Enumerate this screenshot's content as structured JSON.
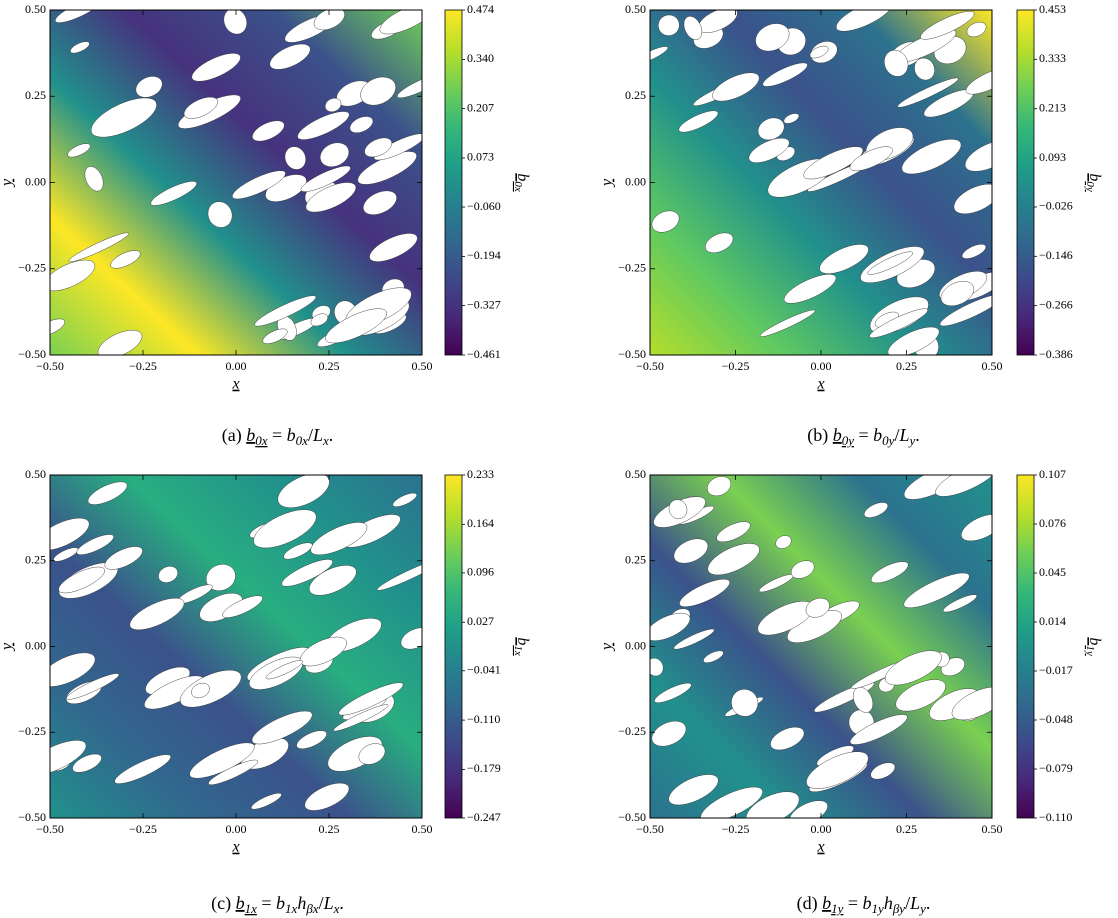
{
  "chart_data": [
    {
      "type": "heatmap",
      "xlabel": "x",
      "ylabel": "y",
      "xlim": [
        -0.5,
        0.5
      ],
      "ylim": [
        -0.5,
        0.5
      ],
      "xticks": [
        {
          "value": -0.5,
          "label": "−0.50"
        },
        {
          "value": -0.25,
          "label": "−0.25"
        },
        {
          "value": 0,
          "label": "0.00"
        },
        {
          "value": 0.25,
          "label": "0.25"
        },
        {
          "value": 0.5,
          "label": "0.50"
        }
      ],
      "yticks": [
        {
          "value": -0.5,
          "label": "−0.50"
        },
        {
          "value": -0.25,
          "label": "−0.25"
        },
        {
          "value": 0,
          "label": "0.00"
        },
        {
          "value": 0.25,
          "label": "0.25"
        },
        {
          "value": 0.5,
          "label": "0.50"
        }
      ],
      "colorbar": {
        "label": {
          "base": "b",
          "sub": "0x"
        },
        "lim": [
          -0.461,
          0.474
        ],
        "ticks": [
          {
            "value": -0.461,
            "label": "−0.461"
          },
          {
            "value": -0.327,
            "label": "−0.327"
          },
          {
            "value": -0.194,
            "label": "−0.194"
          },
          {
            "value": -0.06,
            "label": "−0.060"
          },
          0.073,
          0.207,
          {
            "value": 0.34,
            "label": "0.340"
          },
          0.474
        ]
      },
      "caption": [
        {
          "text": "(a) "
        },
        {
          "text": "b",
          "sub": "0x",
          "underline": true
        },
        {
          "text": " = "
        },
        {
          "text": "b",
          "sub": "0x"
        },
        {
          "text": "/"
        },
        {
          "text": "L",
          "sub": "x"
        },
        {
          "text": "."
        }
      ]
    },
    {
      "type": "heatmap",
      "xlabel": "x",
      "ylabel": "y",
      "xlim": [
        -0.5,
        0.5
      ],
      "ylim": [
        -0.5,
        0.5
      ],
      "xticks": [
        {
          "value": -0.5,
          "label": "−0.50"
        },
        {
          "value": -0.25,
          "label": "−0.25"
        },
        {
          "value": 0,
          "label": "0.00"
        },
        {
          "value": 0.25,
          "label": "0.25"
        },
        {
          "value": 0.5,
          "label": "0.50"
        }
      ],
      "yticks": [
        {
          "value": -0.5,
          "label": "−0.50"
        },
        {
          "value": -0.25,
          "label": "−0.25"
        },
        {
          "value": 0,
          "label": "0.00"
        },
        {
          "value": 0.25,
          "label": "0.25"
        },
        {
          "value": 0.5,
          "label": "0.50"
        }
      ],
      "colorbar": {
        "label": {
          "base": "b",
          "sub": "0y"
        },
        "lim": [
          -0.386,
          0.453
        ],
        "ticks": [
          {
            "value": -0.386,
            "label": "−0.386"
          },
          {
            "value": -0.266,
            "label": "−0.266"
          },
          {
            "value": -0.146,
            "label": "−0.146"
          },
          {
            "value": -0.026,
            "label": "−0.026"
          },
          0.093,
          0.213,
          0.333,
          0.453
        ]
      },
      "caption": [
        {
          "text": "(b) "
        },
        {
          "text": "b",
          "sub": "0y",
          "underline": true
        },
        {
          "text": " = "
        },
        {
          "text": "b",
          "sub": "0y"
        },
        {
          "text": "/"
        },
        {
          "text": "L",
          "sub": "y"
        },
        {
          "text": "."
        }
      ]
    },
    {
      "type": "heatmap",
      "xlabel": "x",
      "ylabel": "y",
      "xlim": [
        -0.5,
        0.5
      ],
      "ylim": [
        -0.5,
        0.5
      ],
      "xticks": [
        {
          "value": -0.5,
          "label": "−0.50"
        },
        {
          "value": -0.25,
          "label": "−0.25"
        },
        {
          "value": 0,
          "label": "0.00"
        },
        {
          "value": 0.25,
          "label": "0.25"
        },
        {
          "value": 0.5,
          "label": "0.50"
        }
      ],
      "yticks": [
        {
          "value": -0.5,
          "label": "−0.50"
        },
        {
          "value": -0.25,
          "label": "−0.25"
        },
        {
          "value": 0,
          "label": "0.00"
        },
        {
          "value": 0.25,
          "label": "0.25"
        },
        {
          "value": 0.5,
          "label": "0.50"
        }
      ],
      "colorbar": {
        "label": {
          "base": "b",
          "sub": "1x"
        },
        "lim": [
          -0.247,
          0.233
        ],
        "ticks": [
          {
            "value": -0.247,
            "label": "−0.247"
          },
          {
            "value": -0.179,
            "label": "−0.179"
          },
          {
            "value": -0.11,
            "label": "−0.110"
          },
          {
            "value": -0.041,
            "label": "−0.041"
          },
          0.027,
          0.096,
          0.164,
          0.233
        ]
      },
      "caption": [
        {
          "text": "(c) "
        },
        {
          "text": "b",
          "sub": "1x",
          "underline": true
        },
        {
          "text": " = "
        },
        {
          "text": "b",
          "sub": "1x"
        },
        {
          "text": "h",
          "sub": "βx"
        },
        {
          "text": "/"
        },
        {
          "text": "L",
          "sub": "x"
        },
        {
          "text": "."
        }
      ]
    },
    {
      "type": "heatmap",
      "xlabel": "x",
      "ylabel": "y",
      "xlim": [
        -0.5,
        0.5
      ],
      "ylim": [
        -0.5,
        0.5
      ],
      "xticks": [
        {
          "value": -0.5,
          "label": "−0.50"
        },
        {
          "value": -0.25,
          "label": "−0.25"
        },
        {
          "value": 0,
          "label": "0.00"
        },
        {
          "value": 0.25,
          "label": "0.25"
        },
        {
          "value": 0.5,
          "label": "0.50"
        }
      ],
      "yticks": [
        {
          "value": -0.5,
          "label": "−0.50"
        },
        {
          "value": -0.25,
          "label": "−0.25"
        },
        {
          "value": 0,
          "label": "0.00"
        },
        {
          "value": 0.25,
          "label": "0.25"
        },
        {
          "value": 0.5,
          "label": "0.50"
        }
      ],
      "colorbar": {
        "label": {
          "base": "b",
          "sub": "1y"
        },
        "lim": [
          -0.11,
          0.107
        ],
        "ticks": [
          {
            "value": -0.11,
            "label": "−0.110"
          },
          {
            "value": -0.079,
            "label": "−0.079"
          },
          {
            "value": -0.048,
            "label": "−0.048"
          },
          {
            "value": -0.017,
            "label": "−0.017"
          },
          0.014,
          0.045,
          0.076,
          0.107
        ]
      },
      "caption": [
        {
          "text": "(d) "
        },
        {
          "text": "b",
          "sub": "1y",
          "underline": true
        },
        {
          "text": " = "
        },
        {
          "text": "b",
          "sub": "1y"
        },
        {
          "text": "h",
          "sub": "βy"
        },
        {
          "text": "/"
        },
        {
          "text": "L",
          "sub": "y"
        },
        {
          "text": "."
        }
      ]
    }
  ]
}
